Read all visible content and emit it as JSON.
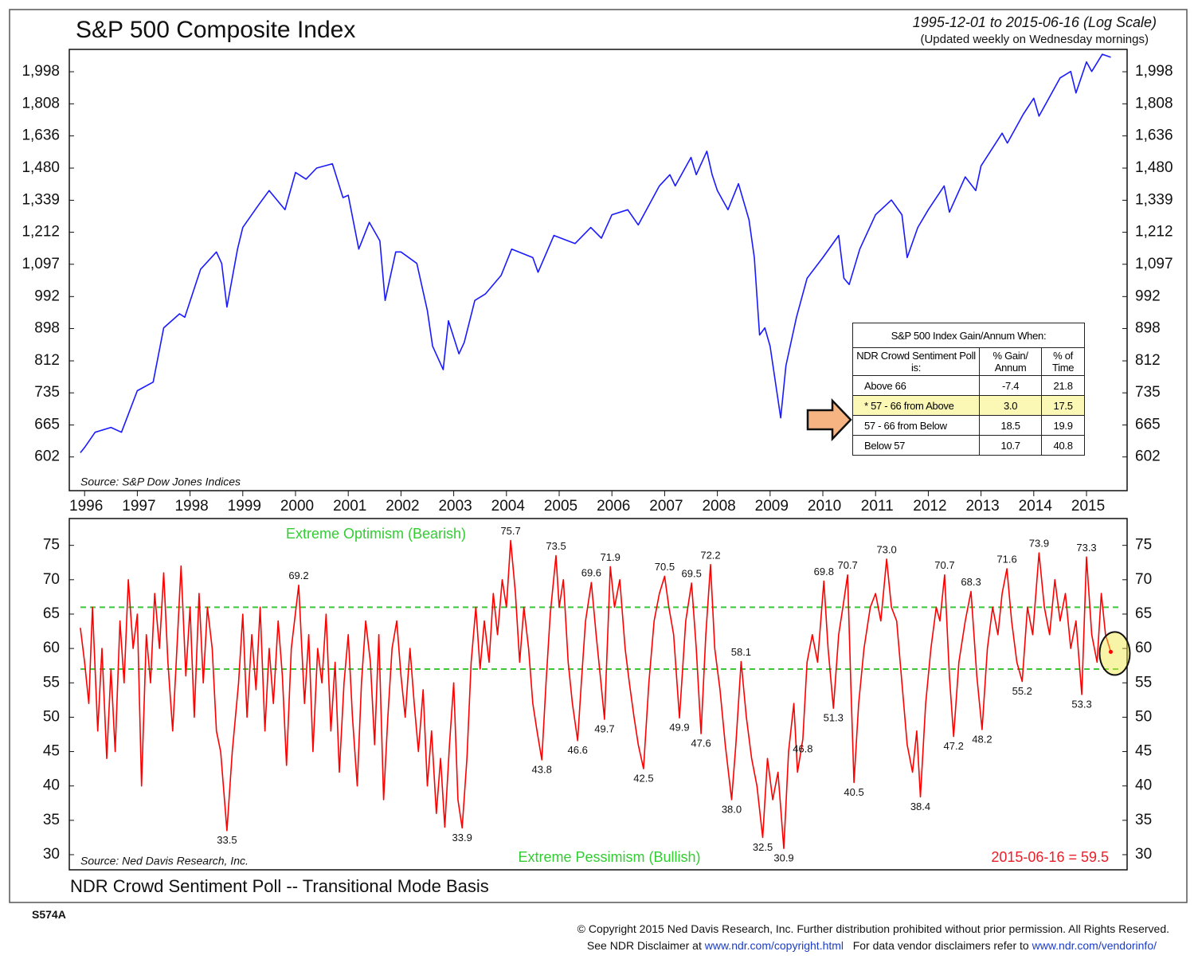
{
  "chart_data": [
    {
      "type": "line",
      "title": "S&P 500 Composite Index",
      "subtitle": "1995-12-01 to 2015-06-16 (Log Scale)",
      "note": "(Updated weekly on Wednesday mornings)",
      "source": "Source:  S&P Dow Jones Indices",
      "log_scale": true,
      "color": "#1a1aff",
      "xlim": [
        1995.71,
        2015.77
      ],
      "xticks": [
        1996,
        1997,
        1998,
        1999,
        2000,
        2001,
        2002,
        2003,
        2004,
        2005,
        2006,
        2007,
        2008,
        2009,
        2010,
        2011,
        2012,
        2013,
        2014,
        2015
      ],
      "ylim": [
        542,
        2142
      ],
      "yticks": [
        602,
        665,
        735,
        812,
        898,
        992,
        {
          "value": 1097,
          "label": "1,097"
        },
        {
          "value": 1212,
          "label": "1,212"
        },
        {
          "value": 1339,
          "label": "1,339"
        },
        {
          "value": 1480,
          "label": "1,480"
        },
        {
          "value": 1636,
          "label": "1,636"
        },
        {
          "value": 1808,
          "label": "1,808"
        },
        {
          "value": 1998,
          "label": "1,998"
        }
      ],
      "x": [
        1995.92,
        1996.0,
        1996.2,
        1996.5,
        1996.7,
        1997.0,
        1997.3,
        1997.5,
        1997.8,
        1997.9,
        1998.2,
        1998.5,
        1998.6,
        1998.7,
        1998.9,
        1999.0,
        1999.3,
        1999.5,
        1999.8,
        2000.0,
        2000.2,
        2000.4,
        2000.7,
        2000.9,
        2001.0,
        2001.2,
        2001.4,
        2001.6,
        2001.7,
        2001.9,
        2002.0,
        2002.3,
        2002.5,
        2002.6,
        2002.8,
        2002.9,
        2003.1,
        2003.2,
        2003.4,
        2003.6,
        2003.9,
        2004.1,
        2004.5,
        2004.6,
        2004.9,
        2005.3,
        2005.6,
        2005.8,
        2006.0,
        2006.3,
        2006.5,
        2006.9,
        2007.1,
        2007.2,
        2007.5,
        2007.6,
        2007.8,
        2007.9,
        2008.0,
        2008.2,
        2008.4,
        2008.6,
        2008.7,
        2008.8,
        2008.9,
        2009.0,
        2009.2,
        2009.3,
        2009.5,
        2009.7,
        2010.0,
        2010.3,
        2010.4,
        2010.5,
        2010.7,
        2011.0,
        2011.3,
        2011.5,
        2011.6,
        2011.8,
        2012.0,
        2012.3,
        2012.4,
        2012.7,
        2012.9,
        2013.0,
        2013.4,
        2013.5,
        2013.8,
        2014.0,
        2014.1,
        2014.5,
        2014.7,
        2014.8,
        2015.0,
        2015.1,
        2015.3,
        2015.46
      ],
      "values": [
        610,
        620,
        650,
        660,
        650,
        740,
        760,
        900,
        940,
        930,
        1080,
        1140,
        1100,
        960,
        1150,
        1230,
        1320,
        1380,
        1300,
        1460,
        1430,
        1480,
        1500,
        1350,
        1360,
        1150,
        1250,
        1180,
        980,
        1140,
        1140,
        1100,
        950,
        850,
        790,
        920,
        830,
        860,
        980,
        1000,
        1060,
        1150,
        1120,
        1070,
        1200,
        1170,
        1230,
        1190,
        1280,
        1300,
        1240,
        1400,
        1450,
        1400,
        1530,
        1450,
        1560,
        1450,
        1380,
        1300,
        1410,
        1260,
        1120,
        880,
        900,
        850,
        680,
        800,
        930,
        1050,
        1120,
        1200,
        1050,
        1030,
        1150,
        1280,
        1340,
        1280,
        1120,
        1230,
        1300,
        1400,
        1290,
        1440,
        1380,
        1490,
        1650,
        1600,
        1750,
        1840,
        1740,
        1960,
        2000,
        1870,
        2060,
        2000,
        2110,
        2090
      ]
    },
    {
      "type": "line",
      "title": "NDR Crowd Sentiment Poll -- Transitional Mode Basis",
      "source": "Source:  Ned Davis Research, Inc.",
      "label_optimism": "Extreme Optimism (Bearish)",
      "label_pessimism": "Extreme Pessimism (Bullish)",
      "latest_label": "2015-06-16 = 59.5",
      "color": "#ff0000",
      "ref_lines": [
        66,
        57
      ],
      "ref_color": "#33cc33",
      "xlim": [
        1995.71,
        2015.77
      ],
      "ylim": [
        27.8,
        78.9
      ],
      "yticks": [
        30,
        35,
        40,
        45,
        50,
        55,
        60,
        65,
        70,
        75
      ],
      "x": [
        1995.92,
        1996.0,
        1996.08,
        1996.15,
        1996.25,
        1996.33,
        1996.42,
        1996.5,
        1996.58,
        1996.67,
        1996.75,
        1996.83,
        1996.92,
        1997.0,
        1997.08,
        1997.17,
        1997.25,
        1997.33,
        1997.42,
        1997.5,
        1997.58,
        1997.67,
        1997.75,
        1997.83,
        1997.92,
        1998.0,
        1998.08,
        1998.17,
        1998.25,
        1998.33,
        1998.42,
        1998.5,
        1998.58,
        1998.7,
        1998.8,
        1998.92,
        1999.0,
        1999.08,
        1999.17,
        1999.25,
        1999.33,
        1999.42,
        1999.5,
        1999.58,
        1999.67,
        1999.75,
        1999.83,
        1999.92,
        2000.06,
        2000.17,
        2000.25,
        2000.33,
        2000.42,
        2000.5,
        2000.58,
        2000.67,
        2000.75,
        2000.83,
        2000.92,
        2001.0,
        2001.08,
        2001.17,
        2001.25,
        2001.33,
        2001.42,
        2001.5,
        2001.58,
        2001.67,
        2001.75,
        2001.83,
        2001.92,
        2002.0,
        2002.08,
        2002.17,
        2002.25,
        2002.33,
        2002.42,
        2002.5,
        2002.58,
        2002.67,
        2002.75,
        2002.83,
        2002.92,
        2003.0,
        2003.08,
        2003.16,
        2003.25,
        2003.33,
        2003.42,
        2003.5,
        2003.58,
        2003.67,
        2003.75,
        2003.83,
        2003.92,
        2004.0,
        2004.08,
        2004.17,
        2004.25,
        2004.33,
        2004.42,
        2004.5,
        2004.58,
        2004.67,
        2004.75,
        2004.83,
        2004.94,
        2005.0,
        2005.08,
        2005.17,
        2005.25,
        2005.35,
        2005.42,
        2005.5,
        2005.61,
        2005.7,
        2005.78,
        2005.86,
        2005.97,
        2006.05,
        2006.15,
        2006.25,
        2006.33,
        2006.42,
        2006.5,
        2006.6,
        2006.7,
        2006.8,
        2006.9,
        2007.0,
        2007.08,
        2007.17,
        2007.28,
        2007.4,
        2007.51,
        2007.6,
        2007.69,
        2007.78,
        2007.87,
        2007.95,
        2008.05,
        2008.15,
        2008.27,
        2008.35,
        2008.45,
        2008.55,
        2008.65,
        2008.75,
        2008.86,
        2008.95,
        2009.05,
        2009.15,
        2009.26,
        2009.35,
        2009.45,
        2009.52,
        2009.62,
        2009.7,
        2009.8,
        2009.9,
        2010.02,
        2010.1,
        2010.2,
        2010.3,
        2010.38,
        2010.47,
        2010.53,
        2010.59,
        2010.68,
        2010.78,
        2010.9,
        2011.0,
        2011.1,
        2011.21,
        2011.3,
        2011.4,
        2011.5,
        2011.6,
        2011.7,
        2011.78,
        2011.85,
        2011.95,
        2012.05,
        2012.15,
        2012.22,
        2012.31,
        2012.4,
        2012.48,
        2012.58,
        2012.7,
        2012.81,
        2012.92,
        2013.02,
        2013.12,
        2013.22,
        2013.32,
        2013.4,
        2013.49,
        2013.58,
        2013.68,
        2013.78,
        2013.88,
        2013.98,
        2014.1,
        2014.2,
        2014.3,
        2014.4,
        2014.5,
        2014.6,
        2014.7,
        2014.8,
        2014.91,
        2015.0,
        2015.1,
        2015.2,
        2015.28,
        2015.36,
        2015.46
      ],
      "values": [
        63,
        58,
        52,
        66,
        48,
        60,
        44,
        57,
        45,
        64,
        55,
        70,
        60,
        65,
        40,
        62,
        55,
        68,
        60,
        71,
        58,
        48,
        60,
        72,
        56,
        66,
        50,
        68,
        55,
        66,
        60,
        48,
        45,
        33.5,
        45,
        55,
        65,
        50,
        62,
        54,
        66,
        48,
        60,
        52,
        64,
        56,
        43,
        60,
        69.2,
        52,
        62,
        45,
        60,
        55,
        65,
        48,
        58,
        42,
        55,
        62,
        50,
        40,
        55,
        64,
        58,
        46,
        62,
        38,
        50,
        60,
        64,
        56,
        50,
        60,
        52,
        45,
        54,
        40,
        48,
        36,
        44,
        34,
        46,
        55,
        38,
        33.9,
        44,
        58,
        66,
        57,
        64,
        58,
        68,
        62,
        70,
        66,
        75.7,
        68,
        58,
        66,
        60,
        52,
        48,
        43.8,
        55,
        65,
        73.5,
        66,
        70,
        58,
        52,
        46.6,
        55,
        64,
        69.6,
        62,
        56,
        49.7,
        71.9,
        66,
        70,
        60,
        55,
        50,
        46,
        42.5,
        55,
        64,
        68,
        70.5,
        66,
        62,
        49.9,
        64,
        69.5,
        60,
        47.6,
        62,
        72.2,
        60,
        54,
        46,
        38.0,
        46,
        58.1,
        50,
        44,
        40,
        32.5,
        44,
        38,
        42,
        30.9,
        45,
        52,
        42,
        46.8,
        58,
        62,
        58,
        69.8,
        60,
        51.3,
        62,
        66,
        70.7,
        55,
        40.5,
        52,
        60,
        66,
        68,
        64,
        73.0,
        66,
        64,
        55,
        46,
        42,
        48,
        38.4,
        52,
        60,
        66,
        64,
        70.7,
        56,
        47.2,
        58,
        64,
        68.3,
        56,
        48.2,
        60,
        66,
        62,
        68,
        71.6,
        64,
        58,
        55.2,
        66,
        62,
        73.9,
        66,
        62,
        70,
        64,
        68,
        60,
        64,
        53.3,
        73.3,
        62,
        58,
        68,
        62,
        59.5
      ],
      "annotations": [
        {
          "x": 1998.7,
          "value": 33.5
        },
        {
          "x": 2000.06,
          "value": 69.2
        },
        {
          "x": 2003.16,
          "value": 33.9
        },
        {
          "x": 2004.08,
          "value": 75.7
        },
        {
          "x": 2004.67,
          "value": 43.8
        },
        {
          "x": 2004.94,
          "value": 73.5
        },
        {
          "x": 2005.35,
          "value": 46.6
        },
        {
          "x": 2005.61,
          "value": 69.6
        },
        {
          "x": 2005.86,
          "value": 49.7
        },
        {
          "x": 2005.97,
          "value": 71.9
        },
        {
          "x": 2006.6,
          "value": 42.5
        },
        {
          "x": 2007.0,
          "value": 70.5
        },
        {
          "x": 2007.28,
          "value": 49.9
        },
        {
          "x": 2007.51,
          "value": 69.5
        },
        {
          "x": 2007.69,
          "value": 47.6
        },
        {
          "x": 2007.87,
          "value": 72.2
        },
        {
          "x": 2008.27,
          "value": "38.0"
        },
        {
          "x": 2008.45,
          "value": 58.1
        },
        {
          "x": 2008.86,
          "value": 32.5
        },
        {
          "x": 2009.26,
          "value": 30.9
        },
        {
          "x": 2009.62,
          "value": 46.8
        },
        {
          "x": 2010.02,
          "value": 69.8
        },
        {
          "x": 2010.2,
          "value": 51.3
        },
        {
          "x": 2010.47,
          "value": 70.7
        },
        {
          "x": 2010.59,
          "value": 40.5
        },
        {
          "x": 2011.21,
          "value": "73.0"
        },
        {
          "x": 2011.85,
          "value": 38.4
        },
        {
          "x": 2012.31,
          "value": 70.7
        },
        {
          "x": 2012.48,
          "value": 47.2
        },
        {
          "x": 2012.81,
          "value": 68.3
        },
        {
          "x": 2013.02,
          "value": 48.2
        },
        {
          "x": 2013.49,
          "value": 71.6
        },
        {
          "x": 2013.78,
          "value": 55.2
        },
        {
          "x": 2014.1,
          "value": 73.9
        },
        {
          "x": 2014.91,
          "value": 53.3
        },
        {
          "x": 2015.0,
          "value": 73.3
        }
      ]
    }
  ],
  "table": {
    "title": "S&P 500 Index Gain/Annum When:",
    "header": [
      "NDR Crowd Sentiment Poll is:",
      "% Gain/ Annum",
      "% of Time"
    ],
    "highlight_row": 1,
    "rows": [
      [
        "Above 66",
        "-7.4",
        "21.8"
      ],
      [
        "* 57 - 66 from Above",
        "3.0",
        "17.5"
      ],
      [
        "57 - 66 from Below",
        "18.5",
        "19.9"
      ],
      [
        "Below 57",
        "10.7",
        "40.8"
      ]
    ]
  },
  "footer": {
    "code": "S574A",
    "copyright": "© Copyright 2015 Ned Davis Research, Inc. Further distribution prohibited without prior permission. All Rights Reserved.",
    "disclaimer": "See NDR Disclaimer at",
    "link1": "www.ndr.com/copyright.html",
    "vendor": "For data vendor disclaimers refer to",
    "link2": "www.ndr.com/vendorinfo/"
  }
}
